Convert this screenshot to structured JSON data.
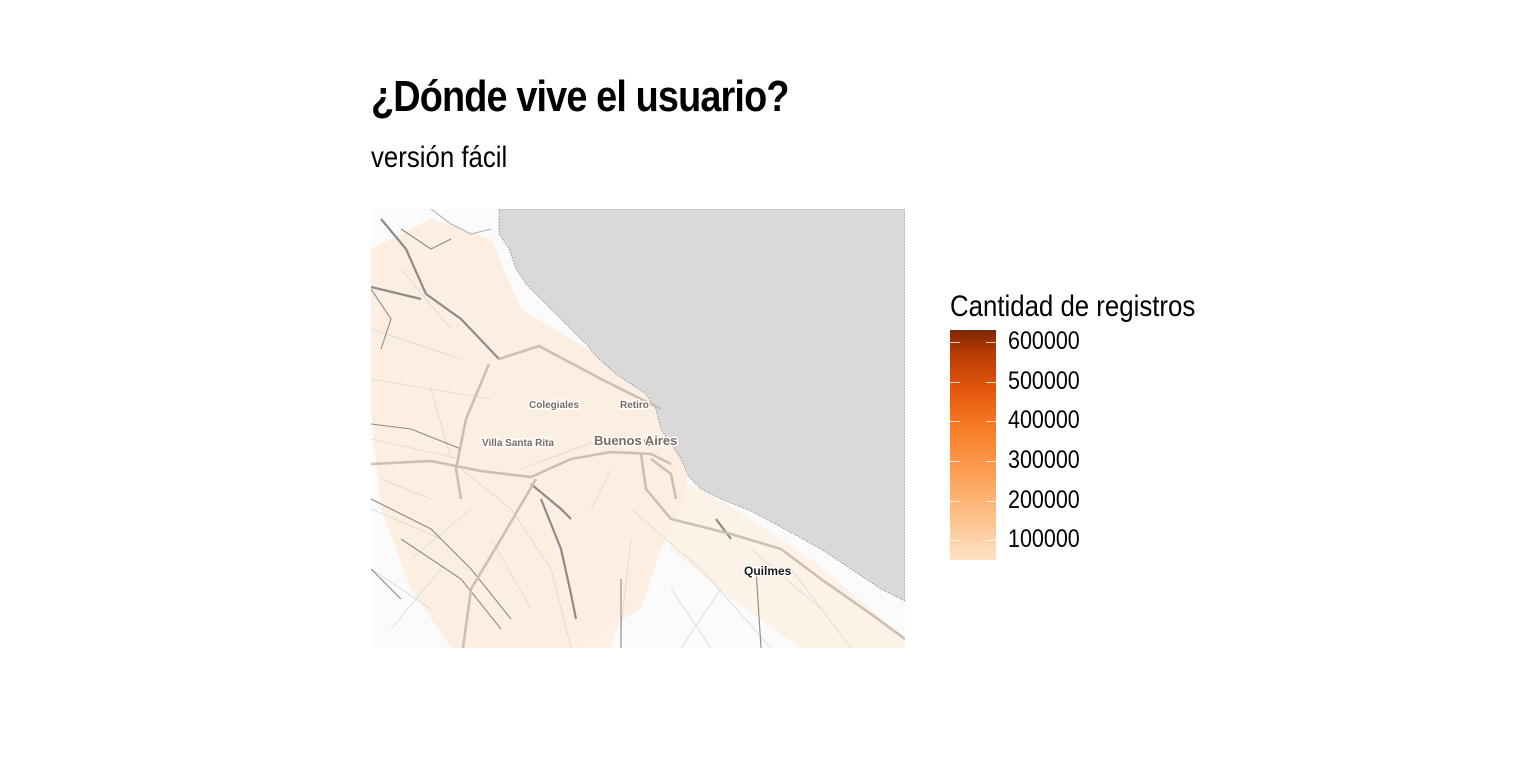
{
  "title": "¿Dónde vive el usuario?",
  "subtitle": "versión fácil",
  "map": {
    "places": [
      {
        "name": "Colegiales"
      },
      {
        "name": "Retiro"
      },
      {
        "name": "Villa Santa Rita"
      },
      {
        "name": "Buenos Aires"
      },
      {
        "name": "Quilmes"
      }
    ],
    "water_color": "#d9d9d9",
    "land_color": "#fbfbfb",
    "hex_low_color": "#fee6ce",
    "hotspot_color": "#c0504d"
  },
  "legend": {
    "title": "Cantidad de registros",
    "ticks": [
      {
        "value": 600000,
        "label": "600000"
      },
      {
        "value": 500000,
        "label": "500000"
      },
      {
        "value": 400000,
        "label": "400000"
      },
      {
        "value": 300000,
        "label": "300000"
      },
      {
        "value": 200000,
        "label": "200000"
      },
      {
        "value": 100000,
        "label": "100000"
      }
    ],
    "range": [
      50000,
      630000
    ],
    "palette": [
      "#fee1c6",
      "#fdbf86",
      "#fd9b4f",
      "#f77b25",
      "#e2540b",
      "#b63c04",
      "#7f2704"
    ]
  }
}
